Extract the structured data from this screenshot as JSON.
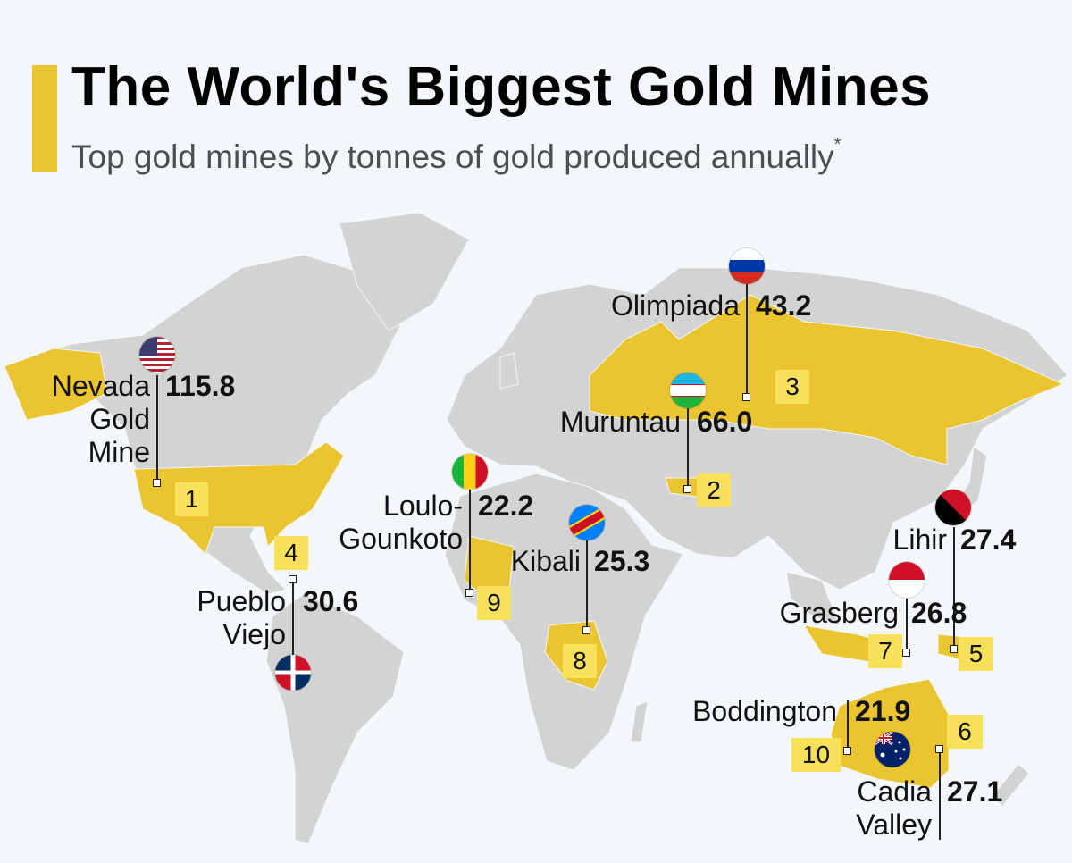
{
  "title": "The World's Biggest Gold Mines",
  "subtitle": "Top gold mines by tonnes of gold produced annually",
  "subtitle_mark": "*",
  "colors": {
    "accent": "#EBC52F",
    "highlight_country": "#EBC52F",
    "rank_box": "#F7E15A",
    "land": "#D3D3D3",
    "background": "#F3F7FA"
  },
  "mines": [
    {
      "rank": "1",
      "name_lines": [
        "Nevada",
        "Gold",
        "Mine"
      ],
      "value": "115.8",
      "country_flag": "usa-flag"
    },
    {
      "rank": "2",
      "name_lines": [
        "Muruntau"
      ],
      "value": "66.0",
      "country_flag": "uzbekistan-flag"
    },
    {
      "rank": "3",
      "name_lines": [
        "Olimpiada"
      ],
      "value": "43.2",
      "country_flag": "russia-flag"
    },
    {
      "rank": "4",
      "name_lines": [
        "Pueblo",
        "Viejo"
      ],
      "value": "30.6",
      "country_flag": "dominican-republic-flag"
    },
    {
      "rank": "5",
      "name_lines": [
        "Lihir"
      ],
      "value": "27.4",
      "country_flag": "papua-new-guinea-flag"
    },
    {
      "rank": "6",
      "name_lines": [
        "Cadia",
        "Valley"
      ],
      "value": "27.1",
      "country_flag": "australia-flag"
    },
    {
      "rank": "7",
      "name_lines": [
        "Grasberg"
      ],
      "value": "26.8",
      "country_flag": "indonesia-flag"
    },
    {
      "rank": "8",
      "name_lines": [
        "Kibali"
      ],
      "value": "25.3",
      "country_flag": "dr-congo-flag"
    },
    {
      "rank": "9",
      "name_lines": [
        "Loulo-",
        "Gounkoto"
      ],
      "value": "22.2",
      "country_flag": "mali-flag"
    },
    {
      "rank": "10",
      "name_lines": [
        "Boddington"
      ],
      "value": "21.9",
      "country_flag": "australia-flag"
    }
  ]
}
